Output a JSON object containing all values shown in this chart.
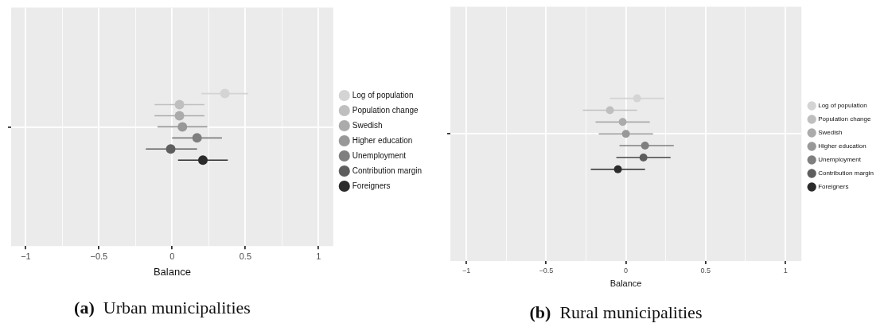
{
  "chart_data": [
    {
      "type": "scatter",
      "title": "(a) Urban municipalities",
      "xlabel": "Balance",
      "orientation": "horizontal",
      "categories": [
        null
      ],
      "xlim": [
        -1.1,
        1.1
      ],
      "xticks": [
        -1,
        {
          "value": -0.75,
          "label": null
        },
        -0.5,
        {
          "value": -0.25,
          "label": null
        },
        0,
        {
          "value": 0.25,
          "label": null
        },
        0.5,
        {
          "value": 0.75,
          "label": null
        },
        1
      ],
      "grid": true,
      "legend": "right",
      "marker": "circle",
      "tick_labels": "x",
      "series": [
        {
          "name": "Log of population",
          "color": "#d4d4d4",
          "values": [
            0.36
          ],
          "errors": [
            [
              0.2,
              0.52
            ]
          ]
        },
        {
          "name": "Population change",
          "color": "#bfbfbf",
          "values": [
            0.05
          ],
          "errors": [
            [
              -0.12,
              0.22
            ]
          ]
        },
        {
          "name": "Swedish",
          "color": "#ababab",
          "values": [
            0.05
          ],
          "errors": [
            [
              -0.12,
              0.22
            ]
          ]
        },
        {
          "name": "Higher education",
          "color": "#989898",
          "values": [
            0.07
          ],
          "errors": [
            [
              -0.1,
              0.24
            ]
          ]
        },
        {
          "name": "Unemployment",
          "color": "#7f7f7f",
          "values": [
            0.17
          ],
          "errors": [
            [
              0.0,
              0.34
            ]
          ]
        },
        {
          "name": "Contribution margin",
          "color": "#5e5e5e",
          "values": [
            -0.01
          ],
          "errors": [
            [
              -0.18,
              0.17
            ]
          ]
        },
        {
          "name": "Foreigners",
          "color": "#2b2b2b",
          "values": [
            0.21
          ],
          "errors": [
            [
              0.04,
              0.38
            ]
          ]
        }
      ]
    },
    {
      "type": "scatter",
      "title": "(b) Rural municipalities",
      "xlabel": "Balance",
      "orientation": "horizontal",
      "categories": [
        null
      ],
      "xlim": [
        -1.1,
        1.1
      ],
      "xticks": [
        -1,
        {
          "value": -0.75,
          "label": null
        },
        -0.5,
        {
          "value": -0.25,
          "label": null
        },
        0,
        {
          "value": 0.25,
          "label": null
        },
        0.5,
        {
          "value": 0.75,
          "label": null
        },
        1
      ],
      "grid": true,
      "legend": "right",
      "marker": "circle",
      "tick_labels": "x",
      "series": [
        {
          "name": "Log of population",
          "color": "#d4d4d4",
          "values": [
            0.07
          ],
          "errors": [
            [
              -0.1,
              0.24
            ]
          ]
        },
        {
          "name": "Population change",
          "color": "#bfbfbf",
          "values": [
            -0.1
          ],
          "errors": [
            [
              -0.27,
              0.07
            ]
          ]
        },
        {
          "name": "Swedish",
          "color": "#ababab",
          "values": [
            -0.02
          ],
          "errors": [
            [
              -0.19,
              0.15
            ]
          ]
        },
        {
          "name": "Higher education",
          "color": "#989898",
          "values": [
            0.0
          ],
          "errors": [
            [
              -0.17,
              0.17
            ]
          ]
        },
        {
          "name": "Unemployment",
          "color": "#7f7f7f",
          "values": [
            0.12
          ],
          "errors": [
            [
              -0.04,
              0.3
            ]
          ]
        },
        {
          "name": "Contribution margin",
          "color": "#5e5e5e",
          "values": [
            0.11
          ],
          "errors": [
            [
              -0.06,
              0.28
            ]
          ]
        },
        {
          "name": "Foreigners",
          "color": "#2b2b2b",
          "values": [
            -0.05
          ],
          "errors": [
            [
              -0.22,
              0.12
            ]
          ]
        }
      ]
    }
  ]
}
